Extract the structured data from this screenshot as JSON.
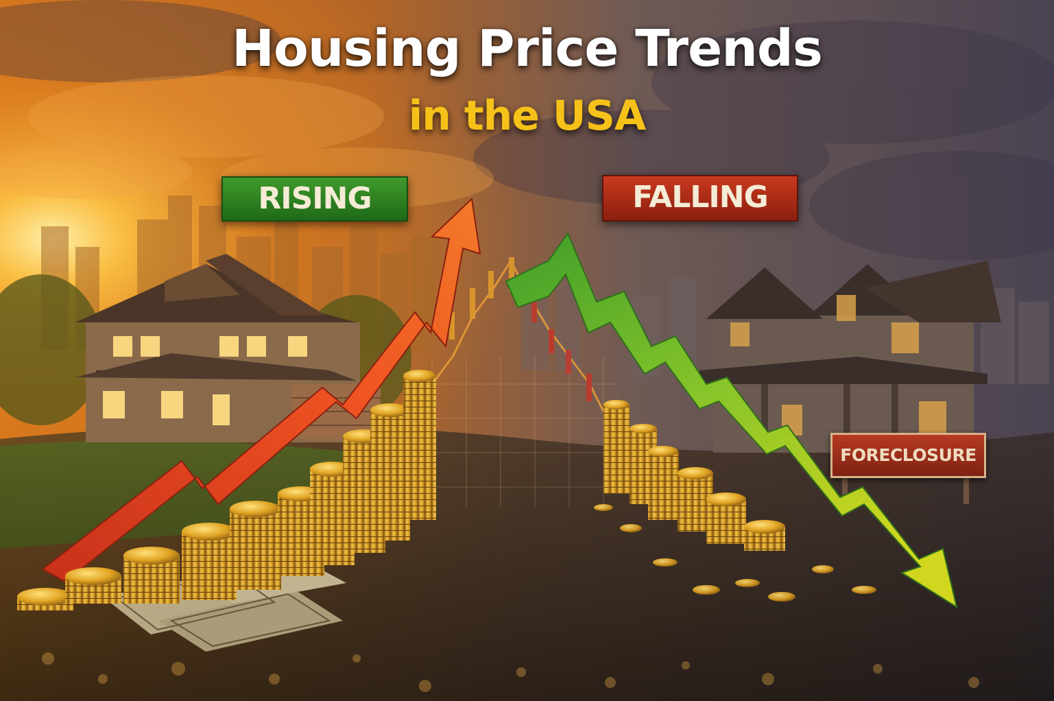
{
  "title": {
    "line1": "Housing Price Trends",
    "line2": "in the USA"
  },
  "labels": {
    "rising": "RISING",
    "falling": "FALLING",
    "sign": "FORECLOSURE"
  },
  "colors": {
    "title_white": "#ffffff",
    "title_gold": "#f6c21a",
    "rising_green": "#2f8a22",
    "falling_red": "#b3301a",
    "rising_arrow": "#e8451c",
    "falling_arrow_top": "#4aa82a",
    "falling_arrow_bottom": "#c6d21e",
    "coin_gold": "#e2a321"
  }
}
